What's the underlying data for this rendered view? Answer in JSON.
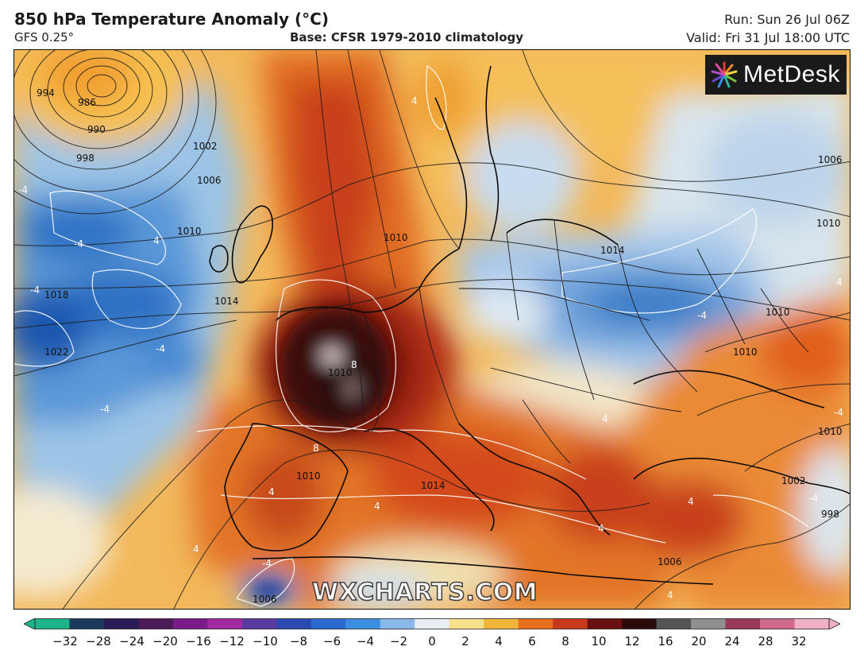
{
  "header": {
    "title": "850 hPa Temperature Anomaly (°C)",
    "model": "GFS 0.25°",
    "base": "Base: CFSR 1979-2010 climatology",
    "run": "Run: Sun 26 Jul 06Z",
    "valid": "Valid: Fri 31 Jul 18:00 UTC"
  },
  "logo": {
    "text": "MetDesk",
    "icon": "starburst-logo-icon"
  },
  "watermark": "WXCHARTS.COM",
  "colorbar": {
    "ticks": [
      "−32",
      "−28",
      "−24",
      "−20",
      "−16",
      "−12",
      "−10",
      "−8",
      "−6",
      "−4",
      "−2",
      "0",
      "2",
      "4",
      "6",
      "8",
      "10",
      "12",
      "16",
      "20",
      "24",
      "28",
      "32"
    ],
    "colors": [
      "#1fb38a",
      "#1a3a5a",
      "#2a1a55",
      "#4a1b55",
      "#7a1b8a",
      "#a02aa0",
      "#5a3aa0",
      "#2a4ab0",
      "#2a6ad0",
      "#3c8ee0",
      "#8ab8e8",
      "#e8eef2",
      "#f6e08a",
      "#f3b43c",
      "#e8701c",
      "#c8381a",
      "#6a1010",
      "#2a0a0a",
      "#555555",
      "#909090",
      "#9a3a5a",
      "#d06a8a",
      "#f0b0c8"
    ]
  },
  "isobar_labels": {
    "l1": "994",
    "l2": "986",
    "l3": "990",
    "l4": "998",
    "l5": "1002",
    "l6": "1006",
    "l7": "1010",
    "l8": "1018",
    "l9": "1022",
    "l10": "1014",
    "l11": "1006",
    "l12": "1010",
    "l13": "1010",
    "l14": "1014",
    "l15": "1010",
    "l16": "1010",
    "l17": "1002",
    "l18": "1006",
    "l19": "998",
    "l20": "1010",
    "l21": "1010",
    "l22": "1014",
    "l23": "1010",
    "l24": "1006"
  },
  "anomaly_labels": {
    "a1": "4",
    "a2": "-4",
    "a3": "-4",
    "a4": "4",
    "a5": "-4",
    "a6": "-4",
    "a7": "-4",
    "a8": "8",
    "a9": "8",
    "a10": "4",
    "a11": "4",
    "a12": "-4",
    "a13": "4",
    "a14": "4",
    "a15": "-4",
    "a16": "4",
    "a17": "-4",
    "a18": "4",
    "a19": "4",
    "a20": "4",
    "a21": "-4"
  },
  "colors": {
    "deep_blue": "#1f5fb8",
    "blue": "#5a9ad8",
    "light_blue": "#b8d4ec",
    "pale": "#f4efe0",
    "yellow": "#f3c65a",
    "orange": "#ea8a2c",
    "red_orange": "#d4521e",
    "dark_red": "#8a1c12",
    "black_red": "#2a0c0a"
  }
}
